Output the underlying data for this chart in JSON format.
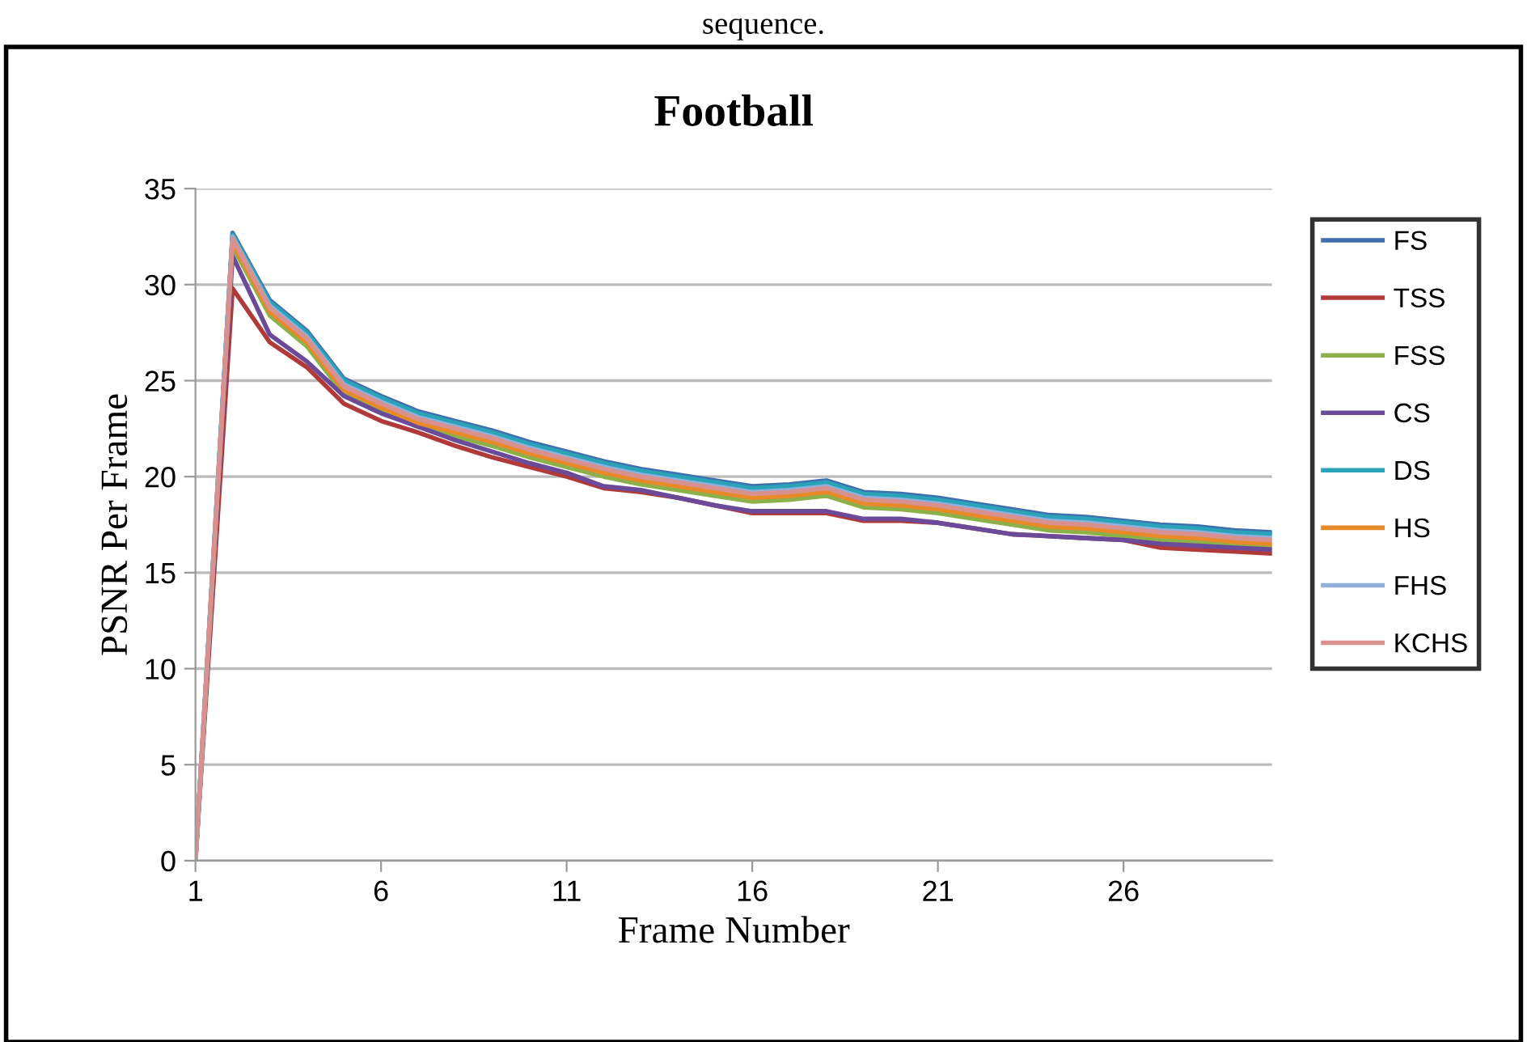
{
  "chart_data": {
    "type": "line",
    "title": "Football",
    "xlabel": "Frame Number",
    "ylabel": "PSNR Per Frame",
    "annotations": [
      "sequence."
    ],
    "x": [
      1,
      2,
      3,
      4,
      5,
      6,
      7,
      8,
      9,
      10,
      11,
      12,
      13,
      14,
      15,
      16,
      17,
      18,
      19,
      20,
      21,
      22,
      23,
      24,
      25,
      26,
      27,
      28,
      29,
      30
    ],
    "xlim": [
      1,
      30
    ],
    "xticks": [
      1,
      6,
      11,
      16,
      21,
      26
    ],
    "ylim": [
      0,
      35
    ],
    "yticks": [
      0,
      5,
      10,
      15,
      20,
      25,
      30,
      35
    ],
    "grid": "y",
    "legend": "right",
    "marker": "none",
    "line_style": "solid",
    "series": [
      {
        "name": "FS",
        "color": "#3f6faf",
        "values": [
          0,
          32.7,
          29.2,
          27.6,
          25.1,
          24.2,
          23.4,
          22.9,
          22.4,
          21.8,
          21.3,
          20.8,
          20.4,
          20.1,
          19.8,
          19.5,
          19.6,
          19.8,
          19.2,
          19.1,
          18.9,
          18.6,
          18.3,
          18.0,
          17.9,
          17.7,
          17.5,
          17.4,
          17.2,
          17.1
        ]
      },
      {
        "name": "TSS",
        "color": "#b03a3a",
        "values": [
          0,
          29.8,
          27.0,
          25.7,
          23.8,
          22.9,
          22.3,
          21.6,
          21.0,
          20.5,
          20.0,
          19.4,
          19.2,
          18.9,
          18.5,
          18.1,
          18.1,
          18.1,
          17.7,
          17.7,
          17.6,
          17.3,
          17.0,
          16.9,
          16.8,
          16.7,
          16.3,
          16.2,
          16.1,
          16.0
        ]
      },
      {
        "name": "FSS",
        "color": "#8cb04a",
        "values": [
          0,
          32.0,
          28.4,
          26.8,
          24.3,
          23.4,
          22.6,
          22.1,
          21.6,
          21.0,
          20.5,
          20.0,
          19.6,
          19.3,
          19.0,
          18.7,
          18.8,
          19.0,
          18.4,
          18.3,
          18.1,
          17.8,
          17.5,
          17.2,
          17.1,
          16.9,
          16.7,
          16.6,
          16.4,
          16.3
        ]
      },
      {
        "name": "CS",
        "color": "#6b4a9a",
        "values": [
          0,
          31.5,
          27.4,
          26.0,
          24.2,
          23.3,
          22.6,
          21.9,
          21.3,
          20.7,
          20.2,
          19.5,
          19.3,
          18.9,
          18.5,
          18.2,
          18.2,
          18.2,
          17.8,
          17.8,
          17.6,
          17.3,
          17.0,
          16.9,
          16.8,
          16.7,
          16.5,
          16.4,
          16.3,
          16.2
        ]
      },
      {
        "name": "DS",
        "color": "#2aa3b8",
        "values": [
          0,
          32.6,
          29.1,
          27.5,
          25.0,
          24.1,
          23.3,
          22.8,
          22.3,
          21.7,
          21.2,
          20.7,
          20.3,
          20.0,
          19.7,
          19.4,
          19.5,
          19.7,
          19.1,
          19.0,
          18.8,
          18.5,
          18.2,
          17.9,
          17.8,
          17.6,
          17.4,
          17.3,
          17.1,
          17.0
        ]
      },
      {
        "name": "HS",
        "color": "#e98a2a",
        "values": [
          0,
          32.2,
          28.6,
          27.0,
          24.5,
          23.6,
          22.8,
          22.3,
          21.8,
          21.2,
          20.7,
          20.2,
          19.8,
          19.5,
          19.2,
          18.9,
          19.0,
          19.2,
          18.6,
          18.5,
          18.3,
          18.0,
          17.7,
          17.4,
          17.3,
          17.1,
          16.9,
          16.8,
          16.6,
          16.5
        ]
      },
      {
        "name": "FHS",
        "color": "#8fb0dd",
        "values": [
          0,
          32.5,
          28.9,
          27.3,
          24.8,
          23.9,
          23.1,
          22.6,
          22.1,
          21.5,
          21.0,
          20.5,
          20.1,
          19.8,
          19.5,
          19.2,
          19.3,
          19.5,
          18.9,
          18.8,
          18.6,
          18.3,
          18.0,
          17.7,
          17.6,
          17.4,
          17.2,
          17.1,
          16.9,
          16.8
        ]
      },
      {
        "name": "KCHS",
        "color": "#d99190",
        "values": [
          0,
          32.4,
          28.8,
          27.2,
          24.7,
          23.8,
          23.0,
          22.5,
          22.0,
          21.4,
          20.9,
          20.4,
          20.0,
          19.7,
          19.4,
          19.1,
          19.2,
          19.4,
          18.8,
          18.7,
          18.5,
          18.2,
          17.9,
          17.6,
          17.5,
          17.3,
          17.1,
          17.0,
          16.8,
          16.7
        ]
      }
    ]
  }
}
